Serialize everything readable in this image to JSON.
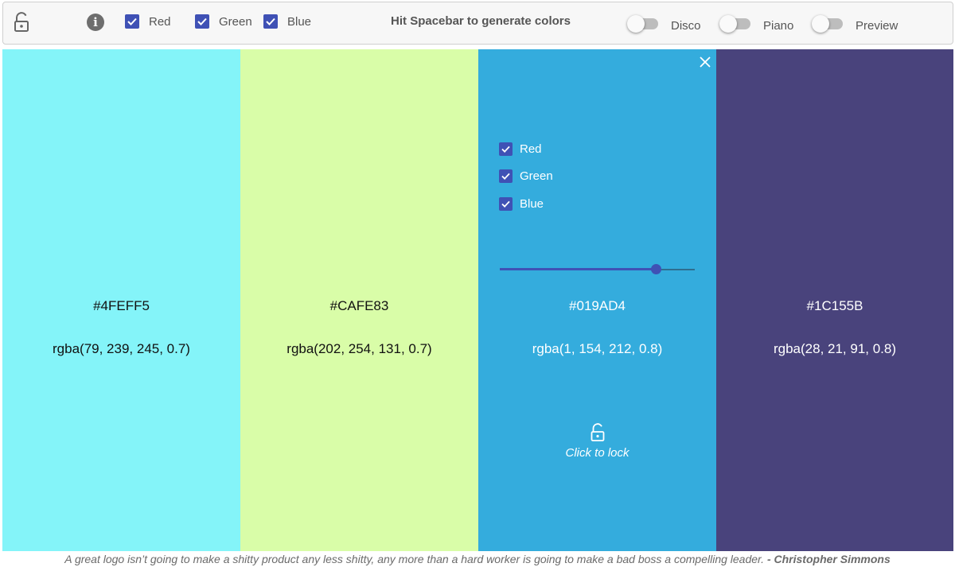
{
  "toolbar": {
    "lock_icon": "lock-open-icon",
    "info_icon": "info-icon",
    "info_glyph": "i",
    "checks": [
      {
        "label": "Red",
        "checked": true
      },
      {
        "label": "Green",
        "checked": true
      },
      {
        "label": "Blue",
        "checked": true
      }
    ],
    "hint": "Hit Spacebar to generate colors",
    "toggles": [
      {
        "label": "Disco",
        "on": false
      },
      {
        "label": "Piano",
        "on": false
      },
      {
        "label": "Preview",
        "on": false
      }
    ],
    "accent": "#3f51b5"
  },
  "columns": [
    {
      "hex": "#4FEFF5",
      "rgba": "rgba(79, 239, 245, 0.7)",
      "background": "#84f4f9",
      "text_color": "#111111"
    },
    {
      "hex": "#CAFE83",
      "rgba": "rgba(202, 254, 131, 0.7)",
      "background": "#d9fda8",
      "text_color": "#111111"
    },
    {
      "hex": "#019AD4",
      "rgba": "rgba(1, 154, 212, 0.8)",
      "background": "#34acdd",
      "text_color": "#ffffff",
      "hovered": true,
      "close_icon": "close-icon",
      "checks": [
        {
          "label": "Red",
          "checked": true
        },
        {
          "label": "Green",
          "checked": true
        },
        {
          "label": "Blue",
          "checked": true
        }
      ],
      "slider_value": 0.8,
      "lock_icon": "lock-open-icon",
      "lock_label": "Click to lock"
    },
    {
      "hex": "#1C155B",
      "rgba": "rgba(28, 21, 91, 0.8)",
      "background": "#49437c",
      "text_color": "#ffffff"
    }
  ],
  "quote": {
    "text": "A great logo isn’t going to make a shitty product any less shitty, any more than a hard worker is going to make a bad boss a compelling leader.",
    "author": "- Christopher Simmons"
  }
}
